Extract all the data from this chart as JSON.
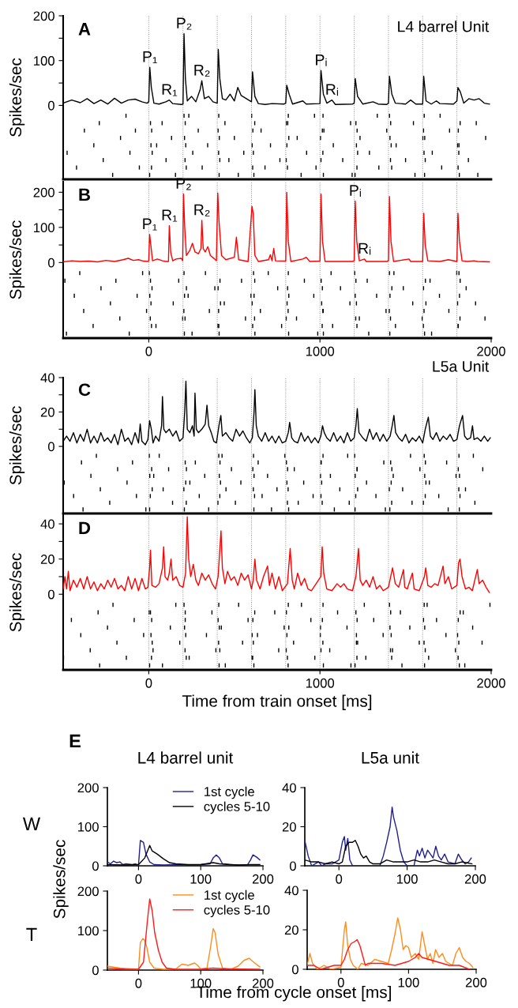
{
  "chart_data": [
    {
      "type": "line",
      "title": "A",
      "subtitle": "L4 barrel Unit",
      "ylabel": "Spikes/sec",
      "xlim": [
        -500,
        2000
      ],
      "ylim": [
        -165,
        200
      ],
      "yticks": [
        0,
        {
          "value": 50,
          "label": null
        },
        100,
        {
          "value": 150,
          "label": null
        },
        200
      ],
      "tick_labels": "y",
      "series": [
        {
          "color": "#000000",
          "x": [
            -500,
            -450,
            -400,
            -360,
            -320,
            -280,
            -240,
            -200,
            -160,
            -120,
            -80,
            -40,
            -10,
            0,
            6,
            15,
            30,
            60,
            100,
            120,
            140,
            190,
            200,
            206,
            214,
            225,
            250,
            275,
            300,
            310,
            325,
            350,
            375,
            400,
            406,
            415,
            430,
            450,
            475,
            500,
            520,
            540,
            570,
            600,
            606,
            620,
            640,
            680,
            720,
            790,
            800,
            806,
            820,
            840,
            900,
            920,
            1000,
            1006,
            1020,
            1040,
            1070,
            1090,
            1190,
            1200,
            1206,
            1220,
            1250,
            1310,
            1340,
            1390,
            1400,
            1406,
            1420,
            1440,
            1500,
            1530,
            1560,
            1600,
            1606,
            1620,
            1650,
            1680,
            1700,
            1780,
            1800,
            1806,
            1820,
            1840,
            1870,
            1900,
            1930,
            1960,
            1990
          ],
          "values": [
            5,
            12,
            6,
            15,
            4,
            12,
            3,
            16,
            5,
            12,
            14,
            8,
            5,
            8,
            85,
            40,
            5,
            3,
            8,
            12,
            4,
            2,
            3,
            160,
            60,
            10,
            20,
            8,
            35,
            55,
            15,
            20,
            8,
            5,
            125,
            60,
            15,
            12,
            25,
            10,
            40,
            22,
            15,
            8,
            75,
            20,
            4,
            2,
            4,
            3,
            5,
            45,
            25,
            3,
            10,
            3,
            4,
            78,
            25,
            5,
            12,
            2,
            3,
            5,
            60,
            20,
            3,
            8,
            3,
            2,
            5,
            65,
            25,
            5,
            3,
            12,
            3,
            3,
            65,
            10,
            3,
            10,
            4,
            3,
            10,
            40,
            30,
            5,
            15,
            12,
            15,
            5,
            3
          ]
        }
      ],
      "ref_lines": [
        {
          "axis": "x",
          "value": 0,
          "line_style": "dotted"
        },
        {
          "axis": "x",
          "value": 200,
          "line_style": "dotted"
        },
        {
          "axis": "x",
          "value": 400,
          "line_style": "dotted"
        },
        {
          "axis": "x",
          "value": 600,
          "line_style": "dotted"
        },
        {
          "axis": "x",
          "value": 800,
          "line_style": "dotted"
        },
        {
          "axis": "x",
          "value": 1000,
          "line_style": "dotted"
        },
        {
          "axis": "x",
          "value": 1200,
          "line_style": "dotted"
        },
        {
          "axis": "x",
          "value": 1400,
          "line_style": "dotted"
        },
        {
          "axis": "x",
          "value": 1600,
          "line_style": "dotted"
        },
        {
          "axis": "x",
          "value": 1800,
          "line_style": "dotted"
        }
      ],
      "annotations": [
        {
          "text": "P₁",
          "x": 6,
          "y": 85
        },
        {
          "text": "R₁",
          "x": 120,
          "y": 12
        },
        {
          "text": "P₂",
          "x": 206,
          "y": 160
        },
        {
          "text": "R₂",
          "x": 310,
          "y": 55
        },
        {
          "text": "Pᵢ",
          "x": 1006,
          "y": 78
        },
        {
          "text": "Rᵢ",
          "x": 1070,
          "y": 12
        }
      ]
    },
    {
      "type": "line",
      "title": "B",
      "ylabel": "Spikes/sec",
      "xlim": [
        -500,
        2000
      ],
      "ylim": [
        -215,
        230
      ],
      "xticks": [
        0,
        1000,
        2000
      ],
      "yticks": [
        0,
        {
          "value": 50,
          "label": null
        },
        100,
        {
          "value": 150,
          "label": null
        },
        200
      ],
      "series": [
        {
          "color": "#ff0000",
          "x": [
            -500,
            -450,
            -400,
            -350,
            -300,
            -250,
            -200,
            -150,
            -120,
            -90,
            -60,
            -30,
            -5,
            0,
            5,
            12,
            22,
            50,
            80,
            100,
            115,
            120,
            128,
            140,
            160,
            190,
            198,
            203,
            210,
            220,
            240,
            255,
            270,
            290,
            305,
            310,
            318,
            330,
            345,
            360,
            385,
            395,
            403,
            410,
            425,
            450,
            500,
            512,
            525,
            580,
            603,
            610,
            620,
            640,
            700,
            710,
            720,
            730,
            740,
            800,
            806,
            815,
            830,
            900,
            920,
            940,
            1000,
            1006,
            1015,
            1030,
            1100,
            1190,
            1200,
            1206,
            1215,
            1230,
            1260,
            1270,
            1390,
            1400,
            1406,
            1415,
            1430,
            1520,
            1530,
            1600,
            1606,
            1615,
            1630,
            1700,
            1750,
            1800,
            1806,
            1815,
            1830,
            1860,
            1900,
            1920,
            1990
          ],
          "values": [
            2,
            5,
            3,
            4,
            2,
            6,
            3,
            8,
            12,
            6,
            8,
            4,
            3,
            5,
            80,
            50,
            5,
            10,
            5,
            3,
            3,
            105,
            30,
            5,
            10,
            12,
            5,
            195,
            100,
            20,
            35,
            55,
            30,
            25,
            40,
            120,
            40,
            30,
            45,
            20,
            10,
            5,
            198,
            120,
            20,
            8,
            15,
            72,
            8,
            3,
            160,
            140,
            20,
            3,
            8,
            22,
            5,
            40,
            5,
            4,
            200,
            60,
            3,
            10,
            15,
            3,
            4,
            195,
            60,
            3,
            3,
            3,
            5,
            175,
            60,
            5,
            10,
            3,
            3,
            5,
            188,
            60,
            3,
            10,
            3,
            3,
            140,
            50,
            5,
            3,
            8,
            3,
            140,
            60,
            5,
            3,
            5,
            3,
            2
          ]
        }
      ],
      "ref_lines": [
        {
          "axis": "x",
          "value": 0,
          "line_style": "dotted"
        },
        {
          "axis": "x",
          "value": 200,
          "line_style": "dotted"
        },
        {
          "axis": "x",
          "value": 400,
          "line_style": "dotted"
        },
        {
          "axis": "x",
          "value": 600,
          "line_style": "dotted"
        },
        {
          "axis": "x",
          "value": 800,
          "line_style": "dotted"
        },
        {
          "axis": "x",
          "value": 1000,
          "line_style": "dotted"
        },
        {
          "axis": "x",
          "value": 1200,
          "line_style": "dotted"
        },
        {
          "axis": "x",
          "value": 1400,
          "line_style": "dotted"
        },
        {
          "axis": "x",
          "value": 1600,
          "line_style": "dotted"
        },
        {
          "axis": "x",
          "value": 1800,
          "line_style": "dotted"
        }
      ],
      "annotations": [
        {
          "text": "P₁",
          "x": 5,
          "y": 80
        },
        {
          "text": "R₁",
          "x": 120,
          "y": 105
        },
        {
          "text": "P₂",
          "x": 203,
          "y": 195
        },
        {
          "text": "R₂",
          "x": 310,
          "y": 120
        },
        {
          "text": "Pᵢ",
          "x": 1206,
          "y": 175
        },
        {
          "text": "Rᵢ",
          "x": 1260,
          "y": 10
        }
      ]
    },
    {
      "type": "line",
      "title": "C",
      "subtitle": "L5a Unit",
      "ylabel": "Spikes/sec",
      "xlim": [
        -500,
        2000
      ],
      "ylim": [
        -39,
        40
      ],
      "yticks": [
        0,
        {
          "value": 10,
          "label": null
        },
        20,
        {
          "value": 30,
          "label": null
        },
        40
      ],
      "tick_labels": "y",
      "series": [
        {
          "color": "#000000",
          "x": [
            -500,
            -480,
            -460,
            -440,
            -420,
            -400,
            -380,
            -360,
            -340,
            -320,
            -300,
            -280,
            -260,
            -240,
            -220,
            -200,
            -180,
            -160,
            -140,
            -120,
            -100,
            -80,
            -60,
            -50,
            -40,
            -20,
            -5,
            5,
            15,
            25,
            40,
            60,
            75,
            80,
            88,
            100,
            120,
            140,
            160,
            180,
            200,
            210,
            217,
            225,
            240,
            255,
            265,
            270,
            278,
            290,
            310,
            330,
            340,
            350,
            365,
            380,
            395,
            410,
            421,
            430,
            450,
            470,
            490,
            510,
            530,
            550,
            570,
            590,
            605,
            615,
            620,
            628,
            640,
            660,
            680,
            700,
            720,
            740,
            760,
            780,
            800,
            815,
            823,
            835,
            850,
            870,
            890,
            910,
            930,
            950,
            970,
            990,
            1005,
            1015,
            1025,
            1040,
            1060,
            1080,
            1100,
            1120,
            1140,
            1160,
            1180,
            1200,
            1210,
            1218,
            1228,
            1250,
            1270,
            1290,
            1310,
            1330,
            1350,
            1370,
            1390,
            1410,
            1422,
            1432,
            1442,
            1460,
            1480,
            1500,
            1520,
            1540,
            1560,
            1580,
            1600,
            1615,
            1625,
            1633,
            1645,
            1660,
            1680,
            1700,
            1720,
            1740,
            1760,
            1780,
            1800,
            1815,
            1833,
            1845,
            1860,
            1880,
            1891,
            1900,
            1920,
            1940,
            1960,
            1980,
            1995
          ],
          "values": [
            3,
            6,
            3,
            8,
            2,
            7,
            3,
            10,
            2,
            6,
            2,
            8,
            3,
            5,
            2,
            7,
            1,
            10,
            3,
            5,
            1,
            8,
            2,
            13,
            3,
            1,
            4,
            15,
            10,
            2,
            6,
            3,
            12,
            29,
            10,
            8,
            10,
            6,
            9,
            3,
            5,
            20,
            38,
            10,
            8,
            12,
            6,
            31,
            10,
            8,
            10,
            13,
            24,
            12,
            8,
            3,
            2,
            12,
            18,
            6,
            8,
            5,
            3,
            10,
            6,
            9,
            5,
            2,
            5,
            20,
            33,
            12,
            6,
            3,
            8,
            3,
            6,
            2,
            6,
            2,
            3,
            8,
            14,
            5,
            3,
            2,
            8,
            3,
            6,
            2,
            5,
            2,
            6,
            12,
            8,
            5,
            3,
            8,
            3,
            6,
            2,
            8,
            3,
            5,
            12,
            22,
            8,
            5,
            3,
            10,
            4,
            8,
            3,
            7,
            3,
            6,
            12,
            18,
            8,
            5,
            3,
            7,
            2,
            5,
            3,
            6,
            2,
            10,
            14,
            17,
            6,
            4,
            8,
            3,
            6,
            4,
            7,
            3,
            4,
            12,
            18,
            6,
            4,
            5,
            12,
            4,
            5,
            3,
            6,
            3,
            5
          ]
        }
      ],
      "ref_lines": [
        {
          "axis": "x",
          "value": 0,
          "line_style": "dotted"
        },
        {
          "axis": "x",
          "value": 200,
          "line_style": "dotted"
        },
        {
          "axis": "x",
          "value": 400,
          "line_style": "dotted"
        },
        {
          "axis": "x",
          "value": 600,
          "line_style": "dotted"
        },
        {
          "axis": "x",
          "value": 800,
          "line_style": "dotted"
        },
        {
          "axis": "x",
          "value": 1000,
          "line_style": "dotted"
        },
        {
          "axis": "x",
          "value": 1200,
          "line_style": "dotted"
        },
        {
          "axis": "x",
          "value": 1400,
          "line_style": "dotted"
        },
        {
          "axis": "x",
          "value": 1600,
          "line_style": "dotted"
        },
        {
          "axis": "x",
          "value": 1800,
          "line_style": "dotted"
        }
      ]
    },
    {
      "type": "line",
      "title": "D",
      "ylabel": "Spikes/sec",
      "xlabel": "Time from train onset [ms]",
      "xlim": [
        -500,
        2000
      ],
      "ylim": [
        -43,
        45
      ],
      "xticks": [
        0,
        1000,
        2000
      ],
      "yticks": [
        0,
        {
          "value": 10,
          "label": null
        },
        20,
        {
          "value": 30,
          "label": null
        },
        40
      ],
      "series": [
        {
          "color": "#ff0000",
          "x": [
            -500,
            -490,
            -480,
            -470,
            -460,
            -440,
            -420,
            -400,
            -380,
            -360,
            -340,
            -320,
            -300,
            -280,
            -260,
            -240,
            -220,
            -200,
            -180,
            -160,
            -140,
            -120,
            -100,
            -80,
            -60,
            -40,
            -20,
            -5,
            5,
            10,
            18,
            40,
            60,
            80,
            87,
            95,
            110,
            120,
            130,
            140,
            160,
            180,
            200,
            215,
            225,
            233,
            245,
            260,
            275,
            290,
            310,
            330,
            350,
            370,
            390,
            405,
            422,
            430,
            445,
            460,
            480,
            500,
            520,
            540,
            560,
            580,
            600,
            610,
            620,
            630,
            650,
            670,
            694,
            705,
            720,
            740,
            760,
            780,
            810,
            826,
            838,
            850,
            870,
            890,
            910,
            930,
            950,
            1005,
            1013,
            1022,
            1040,
            1070,
            1100,
            1120,
            1140,
            1160,
            1190,
            1210,
            1225,
            1235,
            1250,
            1270,
            1290,
            1310,
            1330,
            1350,
            1370,
            1400,
            1424,
            1440,
            1460,
            1488,
            1495,
            1510,
            1540,
            1550,
            1580,
            1610,
            1618,
            1630,
            1650,
            1670,
            1690,
            1719,
            1730,
            1750,
            1770,
            1800,
            1810,
            1818,
            1830,
            1850,
            1870,
            1890,
            1919,
            1930,
            1950,
            1970,
            1990
          ],
          "values": [
            3,
            10,
            3,
            13,
            2,
            8,
            4,
            9,
            3,
            10,
            3,
            7,
            2,
            6,
            3,
            8,
            4,
            9,
            3,
            5,
            2,
            10,
            3,
            9,
            2,
            9,
            3,
            4,
            15,
            25,
            5,
            4,
            6,
            15,
            27,
            10,
            8,
            12,
            20,
            8,
            10,
            5,
            4,
            12,
            44,
            20,
            10,
            17,
            8,
            5,
            12,
            8,
            11,
            6,
            3,
            10,
            36,
            15,
            6,
            13,
            8,
            10,
            5,
            12,
            8,
            11,
            3,
            8,
            20,
            8,
            3,
            10,
            16,
            5,
            12,
            3,
            10,
            2,
            6,
            26,
            8,
            3,
            12,
            5,
            9,
            3,
            2,
            10,
            27,
            12,
            3,
            2,
            6,
            4,
            6,
            3,
            2,
            10,
            26,
            8,
            5,
            8,
            4,
            10,
            3,
            5,
            2,
            4,
            15,
            6,
            4,
            14,
            4,
            3,
            12,
            3,
            2,
            10,
            15,
            5,
            4,
            6,
            5,
            16,
            6,
            10,
            3,
            5,
            18,
            20,
            10,
            3,
            4,
            2,
            14,
            6,
            8,
            4,
            1
          ]
        }
      ],
      "ref_lines": [
        {
          "axis": "x",
          "value": 0,
          "line_style": "dotted"
        },
        {
          "axis": "x",
          "value": 200,
          "line_style": "dotted"
        },
        {
          "axis": "x",
          "value": 400,
          "line_style": "dotted"
        },
        {
          "axis": "x",
          "value": 600,
          "line_style": "dotted"
        },
        {
          "axis": "x",
          "value": 800,
          "line_style": "dotted"
        },
        {
          "axis": "x",
          "value": 1000,
          "line_style": "dotted"
        },
        {
          "axis": "x",
          "value": 1200,
          "line_style": "dotted"
        },
        {
          "axis": "x",
          "value": 1400,
          "line_style": "dotted"
        },
        {
          "axis": "x",
          "value": 1600,
          "line_style": "dotted"
        },
        {
          "axis": "x",
          "value": 1800,
          "line_style": "dotted"
        }
      ]
    },
    {
      "type": "line",
      "title": "L4 barrel unit",
      "xlim": [
        -50,
        200
      ],
      "ylim": [
        0,
        200
      ],
      "xticks": [
        0,
        100,
        200
      ],
      "yticks": [
        0,
        100,
        200
      ],
      "legend": "top right",
      "annotations": [
        "E",
        "W"
      ],
      "series": [
        {
          "name": "1st cycle",
          "color": "#1f1f8f",
          "x": [
            -50,
            -45,
            -40,
            -35,
            -30,
            -25,
            -20,
            -10,
            -5,
            0,
            3,
            8,
            12,
            18,
            25,
            40,
            60,
            80,
            100,
            115,
            120,
            125,
            130,
            135,
            145,
            160,
            175,
            180,
            184,
            190,
            195
          ],
          "values": [
            10,
            5,
            12,
            8,
            10,
            3,
            5,
            3,
            5,
            2,
            65,
            60,
            30,
            10,
            3,
            2,
            3,
            2,
            3,
            5,
            20,
            28,
            20,
            5,
            3,
            2,
            2,
            15,
            28,
            22,
            15
          ]
        },
        {
          "name": "cycles 5-10",
          "color": "#000000",
          "x": [
            -50,
            -20,
            0,
            10,
            15,
            18,
            22,
            30,
            40,
            50,
            60,
            80,
            100,
            120,
            130,
            160,
            180,
            195
          ],
          "values": [
            3,
            2,
            3,
            20,
            40,
            52,
            38,
            30,
            18,
            8,
            5,
            3,
            3,
            8,
            5,
            2,
            3,
            3
          ]
        }
      ]
    },
    {
      "type": "line",
      "title": "L5a unit",
      "xlim": [
        -50,
        200
      ],
      "ylim": [
        0,
        40
      ],
      "xticks": [
        0,
        100,
        200
      ],
      "yticks": [
        0,
        20,
        40
      ],
      "series": [
        {
          "color": "#1f1f8f",
          "x": [
            -50,
            -45,
            -40,
            -30,
            -25,
            -20,
            -10,
            0,
            5,
            8,
            10,
            13,
            16,
            20,
            60,
            65,
            70,
            75,
            78,
            80,
            85,
            88,
            90,
            95,
            100,
            110,
            115,
            118,
            122,
            126,
            130,
            134,
            138,
            142,
            146,
            150,
            155,
            160,
            170,
            175,
            180,
            185,
            190,
            194
          ],
          "values": [
            13,
            5,
            0,
            2,
            0,
            1,
            1,
            3,
            12,
            15,
            8,
            14,
            3,
            0,
            0,
            5,
            12,
            20,
            30,
            25,
            18,
            12,
            8,
            2,
            0,
            0,
            8,
            5,
            9,
            4,
            8,
            6,
            4,
            10,
            5,
            3,
            6,
            2,
            1,
            6,
            3,
            1,
            2,
            4
          ]
        },
        {
          "color": "#000000",
          "x": [
            -50,
            -40,
            -30,
            -20,
            -10,
            0,
            5,
            10,
            15,
            20,
            24,
            28,
            32,
            36,
            40,
            45,
            50,
            60,
            70,
            80,
            90,
            100,
            110,
            120,
            130,
            140,
            150,
            160,
            170,
            180,
            195
          ],
          "values": [
            3,
            2,
            2,
            1,
            2,
            1,
            2,
            10,
            12,
            12,
            13,
            10,
            6,
            4,
            5,
            2,
            1,
            1,
            3,
            2,
            2,
            2,
            3,
            2,
            2,
            3,
            2,
            1,
            1,
            2,
            1
          ]
        }
      ]
    },
    {
      "type": "line",
      "ylabel": "Spikes/sec",
      "xlabel": "Time from cycle onset [ms]",
      "xlim": [
        -50,
        200
      ],
      "ylim": [
        0,
        200
      ],
      "xticks": [
        0,
        100,
        200
      ],
      "yticks": [
        0,
        100,
        200
      ],
      "legend": "top right",
      "annotations": [
        "T"
      ],
      "series": [
        {
          "name": "1st cycle",
          "color": "#ff8c1a",
          "x": [
            -50,
            -30,
            -10,
            0,
            3,
            7,
            10,
            13,
            18,
            25,
            40,
            60,
            70,
            80,
            90,
            95,
            100,
            110,
            116,
            120,
            123,
            128,
            135,
            150,
            160,
            170,
            178,
            185,
            195
          ],
          "values": [
            10,
            5,
            3,
            2,
            70,
            80,
            75,
            60,
            20,
            5,
            2,
            3,
            15,
            12,
            18,
            12,
            3,
            5,
            60,
            105,
            95,
            40,
            5,
            3,
            10,
            25,
            30,
            20,
            8
          ]
        },
        {
          "name": "cycles 5-10",
          "color": "#ff1a1a",
          "x": [
            -50,
            -20,
            0,
            8,
            14,
            18,
            22,
            26,
            32,
            38,
            45,
            60,
            100,
            120,
            140,
            195
          ],
          "values": [
            5,
            2,
            2,
            20,
            120,
            180,
            150,
            95,
            50,
            20,
            5,
            2,
            2,
            5,
            3,
            2
          ]
        }
      ]
    },
    {
      "type": "line",
      "xlim": [
        -50,
        200
      ],
      "ylim": [
        0,
        40
      ],
      "xticks": [
        0,
        100,
        200
      ],
      "yticks": [
        0,
        20,
        40
      ],
      "series": [
        {
          "color": "#ff8c1a",
          "x": [
            -50,
            -46,
            -42,
            -35,
            -25,
            -15,
            0,
            5,
            7,
            10,
            14,
            18,
            25,
            30,
            40,
            50,
            60,
            70,
            75,
            80,
            84,
            88,
            92,
            96,
            100,
            104,
            110,
            115,
            120,
            124,
            128,
            132,
            136,
            140,
            145,
            150,
            155,
            165,
            170,
            175,
            180,
            185,
            190,
            195
          ],
          "values": [
            2,
            8,
            3,
            0,
            2,
            0,
            1,
            20,
            24,
            12,
            5,
            2,
            0,
            3,
            2,
            5,
            4,
            3,
            10,
            18,
            26,
            20,
            10,
            12,
            11,
            6,
            8,
            5,
            19,
            12,
            5,
            8,
            3,
            10,
            6,
            8,
            4,
            2,
            8,
            11,
            6,
            4,
            3,
            1
          ]
        },
        {
          "color": "#ff1a1a",
          "x": [
            -50,
            -40,
            -30,
            -20,
            -10,
            0,
            5,
            10,
            15,
            20,
            24,
            28,
            32,
            36,
            40,
            60,
            80,
            90,
            100,
            110,
            115,
            120,
            130,
            140,
            150,
            160,
            175,
            190
          ],
          "values": [
            2,
            2,
            0,
            1,
            2,
            2,
            5,
            10,
            13,
            14,
            15,
            12,
            7,
            2,
            3,
            3,
            2,
            3,
            4,
            6,
            8,
            6,
            5,
            4,
            3,
            2,
            2,
            0
          ]
        }
      ]
    }
  ]
}
